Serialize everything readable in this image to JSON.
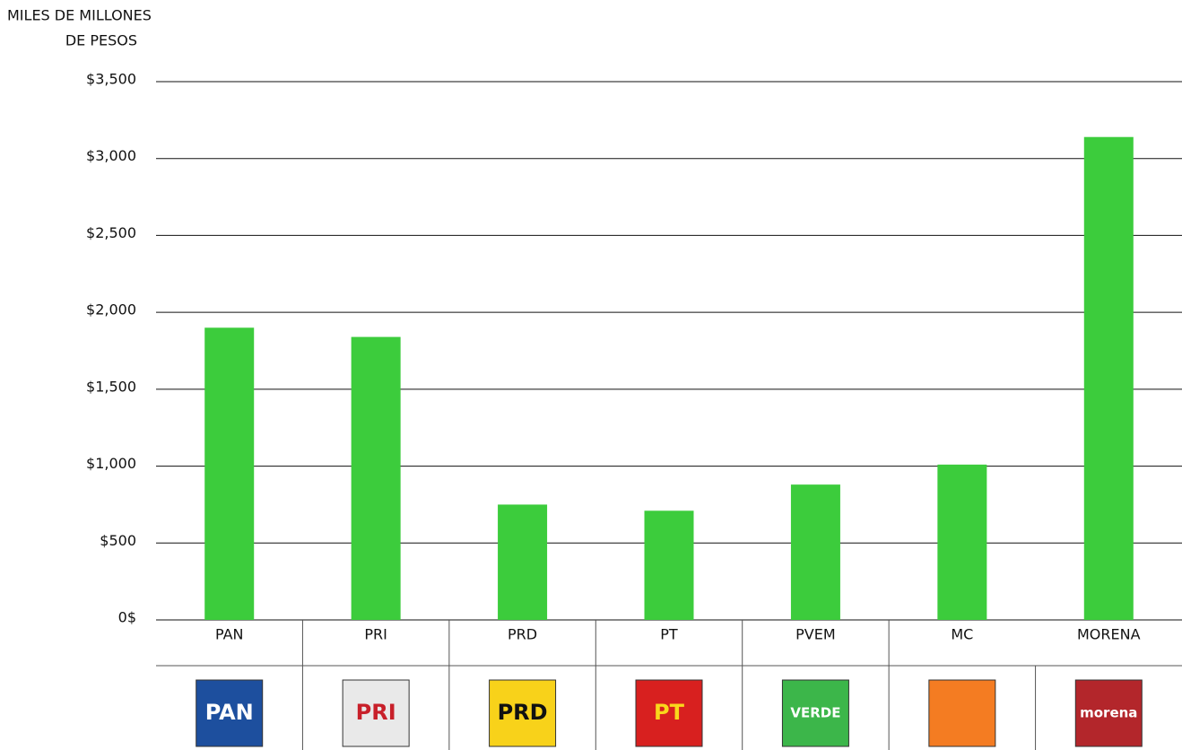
{
  "chart_data": {
    "type": "bar",
    "y_label": [
      "MILES DE MILLONES",
      "DE PESOS"
    ],
    "categories": [
      "PAN",
      "PRI",
      "PRD",
      "PT",
      "PVEM",
      "MC",
      "MORENA"
    ],
    "values": [
      1900,
      1840,
      750,
      710,
      880,
      1010,
      3140
    ],
    "color": "#3ccc3c",
    "ylim": [
      0,
      3500
    ],
    "yticks": [
      {
        "value": 0,
        "label": "0$"
      },
      {
        "value": 500,
        "label": "$500"
      },
      {
        "value": 1000,
        "label": "$1,000"
      },
      {
        "value": 1500,
        "label": "$1,500"
      },
      {
        "value": 2000,
        "label": "$2,000"
      },
      {
        "value": 2500,
        "label": "$2,500"
      },
      {
        "value": 3000,
        "label": "$3,000"
      },
      {
        "value": 3500,
        "label": "$3,500"
      }
    ],
    "grid": true,
    "logos": [
      "PAN",
      "PRI",
      "PRD",
      "PT",
      "VERDE",
      null,
      "morena"
    ]
  }
}
